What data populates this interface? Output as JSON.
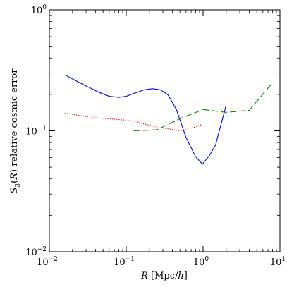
{
  "chart_data": {
    "type": "line",
    "title": "",
    "xlabel": "R [Mpc/h]",
    "ylabel": "S3(R) relative cosmic error",
    "xscale": "log",
    "yscale": "log",
    "xlim": [
      0.01,
      10
    ],
    "ylim": [
      0.01,
      1
    ],
    "grid": false,
    "legend": "none",
    "x_ticks": [
      {
        "value": 0.01,
        "base": "10",
        "exp": "−2"
      },
      {
        "value": 0.1,
        "base": "10",
        "exp": "−1"
      },
      {
        "value": 1,
        "base": "10",
        "exp": "0"
      },
      {
        "value": 10,
        "base": "10",
        "exp": "1"
      }
    ],
    "y_ticks": [
      {
        "value": 0.01,
        "base": "10",
        "exp": "−2"
      },
      {
        "value": 0.1,
        "base": "10",
        "exp": "−1"
      },
      {
        "value": 1,
        "base": "10",
        "exp": "0"
      }
    ],
    "series": [
      {
        "color": "#0000ff",
        "style": "solid",
        "points": [
          [
            0.016,
            0.29
          ],
          [
            0.022,
            0.26
          ],
          [
            0.03,
            0.235
          ],
          [
            0.045,
            0.207
          ],
          [
            0.06,
            0.193
          ],
          [
            0.08,
            0.189
          ],
          [
            0.1,
            0.193
          ],
          [
            0.13,
            0.205
          ],
          [
            0.17,
            0.218
          ],
          [
            0.22,
            0.223
          ],
          [
            0.28,
            0.218
          ],
          [
            0.35,
            0.198
          ],
          [
            0.45,
            0.15
          ],
          [
            0.6,
            0.088
          ],
          [
            0.8,
            0.061
          ],
          [
            0.98,
            0.053
          ],
          [
            1.2,
            0.062
          ],
          [
            1.45,
            0.076
          ],
          [
            1.98,
            0.16
          ]
        ]
      },
      {
        "color": "#ff0000",
        "style": "dotted",
        "points": [
          [
            0.016,
            0.14
          ],
          [
            0.02,
            0.137
          ],
          [
            0.03,
            0.131
          ],
          [
            0.05,
            0.127
          ],
          [
            0.08,
            0.124
          ],
          [
            0.12,
            0.121
          ],
          [
            0.18,
            0.113
          ],
          [
            0.25,
            0.107
          ],
          [
            0.35,
            0.104
          ],
          [
            0.5,
            0.1
          ],
          [
            0.7,
            0.105
          ],
          [
            0.98,
            0.113
          ]
        ]
      },
      {
        "color": "#008000",
        "style": "dashed",
        "points": [
          [
            0.125,
            0.1
          ],
          [
            0.25,
            0.102
          ],
          [
            0.5,
            0.126
          ],
          [
            1.0,
            0.15
          ],
          [
            2.0,
            0.142
          ],
          [
            4.0,
            0.148
          ],
          [
            8.0,
            0.25
          ]
        ]
      }
    ]
  }
}
